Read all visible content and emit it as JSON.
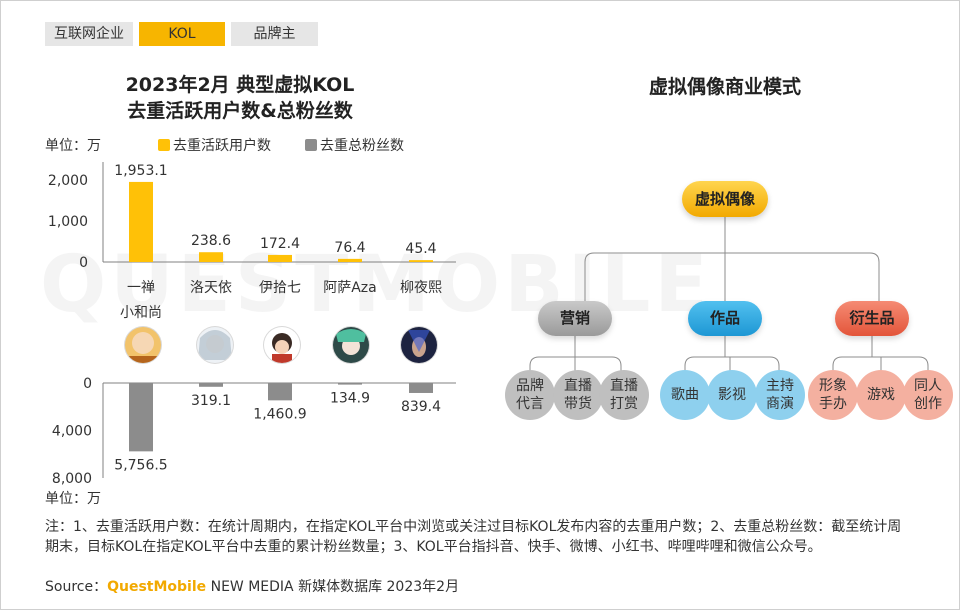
{
  "tabs": [
    {
      "label": "互联网企业",
      "bg": "#e6e6e6"
    },
    {
      "label": "KOL",
      "bg": "#f7b500"
    },
    {
      "label": "品牌主",
      "bg": "#e6e6e6"
    }
  ],
  "chart_title_line1": "2023年2月 典型虚拟KOL",
  "chart_title_line2": "去重活跃用户数&总粉丝数",
  "model_title": "虚拟偶像商业模式",
  "unit_top": "单位：万",
  "unit_bottom": "单位：万",
  "watermark": "QUESTMOBILE",
  "colors": {
    "active": "#ffc107",
    "fans": "#8c8c8c",
    "accent": "#f2a900"
  },
  "chart_data": {
    "type": "bar",
    "categories": [
      "一禅小和尚",
      "洛天依",
      "伊拾七",
      "阿萨Aza",
      "柳夜熙"
    ],
    "category_lines": [
      [
        "一禅",
        "小和尚"
      ],
      [
        "洛天依"
      ],
      [
        "伊拾七"
      ],
      [
        "阿萨Aza"
      ],
      [
        "柳夜熙"
      ]
    ],
    "series": [
      {
        "name": "去重活跃用户数",
        "values": [
          1953.1,
          238.6,
          172.4,
          76.4,
          45.4
        ],
        "labels": [
          "1,953.1",
          "238.6",
          "172.4",
          "76.4",
          "45.4"
        ]
      },
      {
        "name": "去重总粉丝数",
        "values": [
          5756.5,
          319.1,
          1460.9,
          134.9,
          839.4
        ],
        "labels": [
          "5,756.5",
          "319.1",
          "1,460.9",
          "134.9",
          "839.4"
        ]
      }
    ],
    "top_ticks": [
      "0",
      "1,000",
      "2,000"
    ],
    "bottom_ticks": [
      "0",
      "4,000",
      "8,000"
    ],
    "top_ylim": [
      0,
      2000
    ],
    "bottom_ylim": [
      0,
      8000
    ]
  },
  "model": {
    "root": "虚拟偶像",
    "branches": [
      {
        "label": "营销",
        "color": "#a6a6a6",
        "leafColor": "#bfbfbf",
        "leaves": [
          [
            "品牌",
            "代言"
          ],
          [
            "直播",
            "带货"
          ],
          [
            "直播",
            "打赏"
          ]
        ]
      },
      {
        "label": "作品",
        "color": "#29a8e0",
        "leafColor": "#8ed0ee",
        "leaves": [
          [
            "歌曲"
          ],
          [
            "影视"
          ],
          [
            "主持",
            "商演"
          ]
        ]
      },
      {
        "label": "衍生品",
        "color": "#ee6a50",
        "leafColor": "#f4b0a0",
        "leaves": [
          [
            "形象",
            "手办"
          ],
          [
            "游戏"
          ],
          [
            "同人",
            "创作"
          ]
        ]
      }
    ]
  },
  "note": "注：1、去重活跃用户数：在统计周期内，在指定KOL平台中浏览或关注过目标KOL发布内容的去重用户数；2、去重总粉丝数：截至统计周期末，目标KOL在指定KOL平台中去重的累计粉丝数量；3、KOL平台指抖音、快手、微博、小红书、哔哩哔哩和微信公众号。",
  "source_prefix": "Source：",
  "source_brand": "QuestMobile",
  "source_suffix": " NEW MEDIA 新媒体数据库 2023年2月"
}
